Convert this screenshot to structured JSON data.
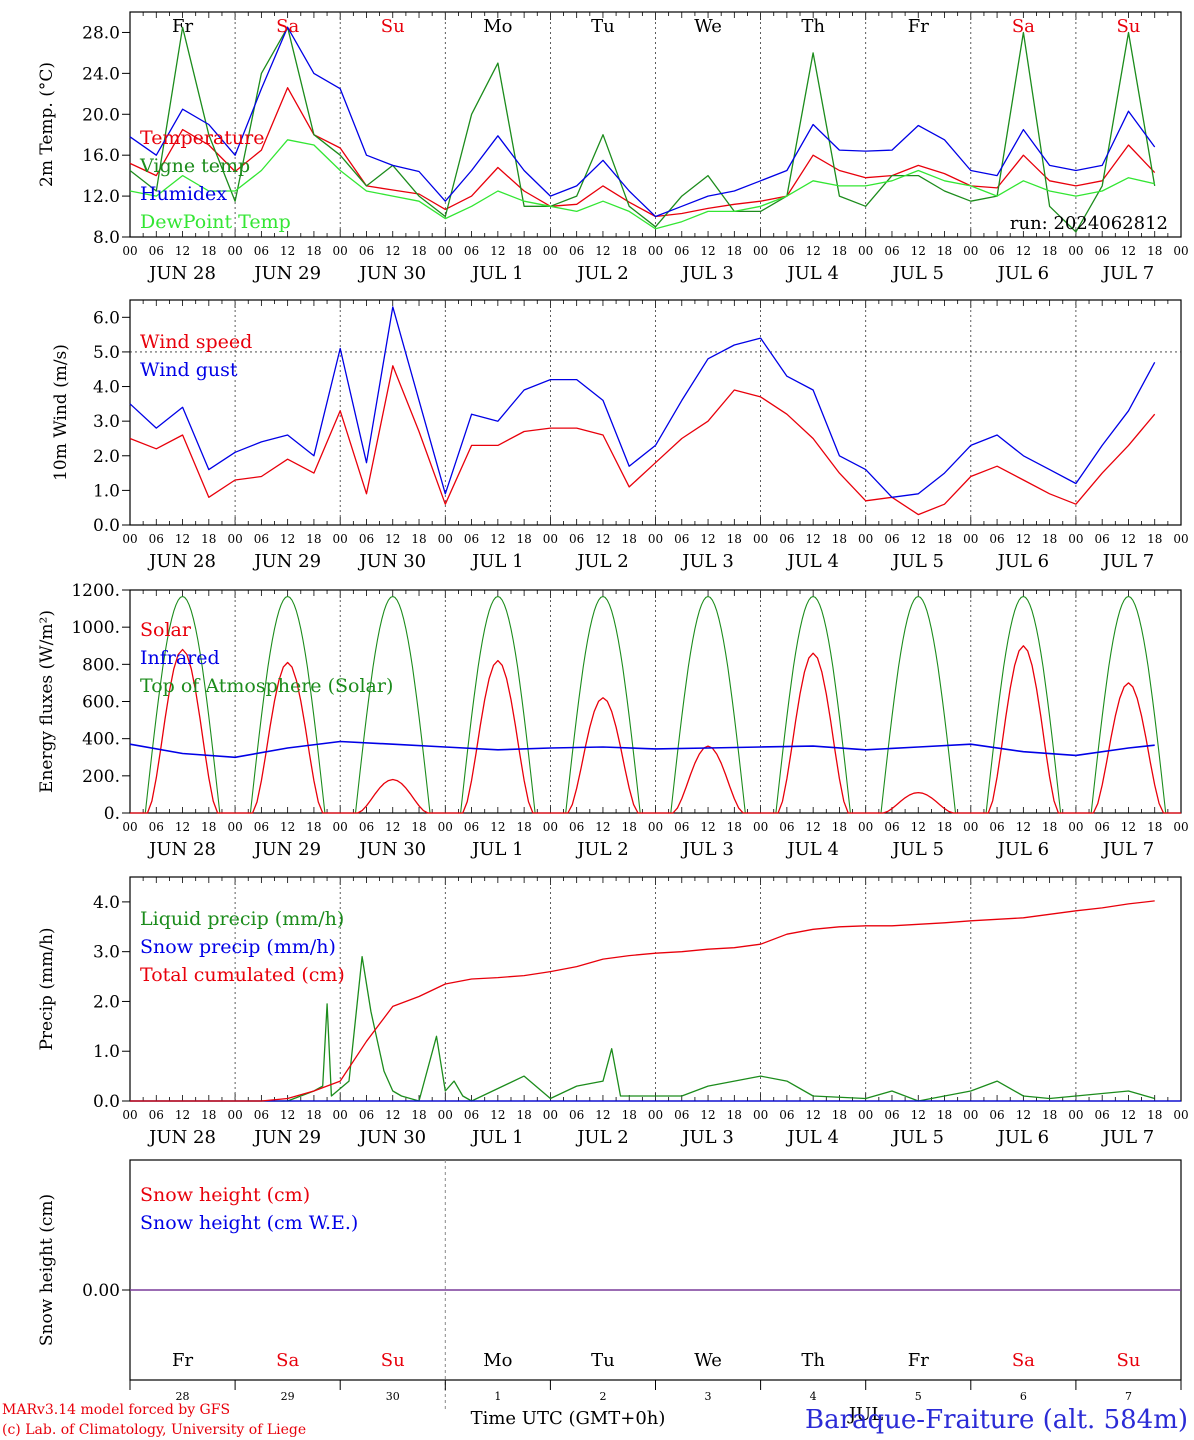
{
  "footer": {
    "credit_line1": "MARv3.14 model forced by GFS",
    "credit_line2": "(c) Lab. of Climatology, University of Liege",
    "xlabel": "Time UTC (GMT+0h)",
    "station": "Baraque-Fraiture (alt. 584m)",
    "month": "JUL"
  },
  "days": [
    "Fr",
    "Sa",
    "Su",
    "Mo",
    "Tu",
    "We",
    "Th",
    "Fr",
    "Sa",
    "Su"
  ],
  "weekend_color": "#e8000b",
  "weekday_color": "#000000",
  "date_labels": [
    "JUN 28",
    "JUN 29",
    "JUN 30",
    "JUL  1",
    "JUL  2",
    "JUL  3",
    "JUL  4",
    "JUL  5",
    "JUL  6",
    "JUL  7"
  ],
  "day_numbers": [
    "28",
    "29",
    "30",
    "1",
    "2",
    "3",
    "4",
    "5",
    "6",
    "7"
  ],
  "hour_ticks": [
    "00",
    "06",
    "12",
    "18"
  ],
  "chart_data": [
    {
      "type": "line",
      "ylabel": "2m Temp. (°C)",
      "ylim": [
        8,
        30
      ],
      "yticks": [
        "8.0",
        "12.0",
        "16.0",
        "20.0",
        "24.0",
        "28.0"
      ],
      "x_unit": "hours since 2024-06-28 00 UTC",
      "annotation": "run: 2024062812",
      "series": [
        {
          "name": "Temperature",
          "color": "#e8000b",
          "x": [
            0,
            6,
            12,
            18,
            24,
            30,
            36,
            42,
            48,
            54,
            60,
            66,
            72,
            78,
            84,
            90,
            96,
            102,
            108,
            114,
            120,
            126,
            132,
            138,
            144,
            150,
            156,
            162,
            168,
            174,
            180,
            186,
            192,
            198,
            204,
            210,
            216,
            222,
            228,
            234
          ],
          "y": [
            15.2,
            14.0,
            18.5,
            17.0,
            14.4,
            16.5,
            22.6,
            18.0,
            16.7,
            13.0,
            12.6,
            12.2,
            10.7,
            12.0,
            14.8,
            12.5,
            11.0,
            11.2,
            13.0,
            11.4,
            10.0,
            10.3,
            10.8,
            11.2,
            11.5,
            12.0,
            16.0,
            14.5,
            13.8,
            14.0,
            15.0,
            14.2,
            13.0,
            12.8,
            16.0,
            13.5,
            13.0,
            13.5,
            17.0,
            14.3
          ]
        },
        {
          "name": "Vigne temp",
          "color": "#1c8c1c",
          "x": [
            0,
            6,
            12,
            18,
            24,
            30,
            36,
            42,
            48,
            54,
            60,
            66,
            72,
            78,
            84,
            90,
            96,
            102,
            108,
            114,
            120,
            126,
            132,
            138,
            144,
            150,
            156,
            162,
            168,
            174,
            180,
            186,
            192,
            198,
            204,
            210,
            216,
            222,
            228,
            234
          ],
          "y": [
            14.5,
            12.5,
            28.5,
            18.0,
            11.5,
            24.0,
            28.5,
            18.0,
            16.0,
            13.0,
            15.0,
            12.0,
            10.0,
            20.0,
            25.0,
            11.0,
            11.0,
            12.0,
            18.0,
            11.0,
            9.0,
            12.0,
            14.0,
            10.5,
            10.5,
            12.0,
            26.0,
            12.0,
            11.0,
            14.0,
            14.0,
            12.5,
            11.5,
            12.0,
            28.0,
            11.0,
            8.5,
            13.0,
            28.0,
            13.0
          ]
        },
        {
          "name": "Humidex",
          "color": "#0000e6",
          "x": [
            0,
            6,
            12,
            18,
            24,
            30,
            36,
            42,
            48,
            54,
            60,
            66,
            72,
            78,
            84,
            90,
            96,
            102,
            108,
            114,
            120,
            126,
            132,
            138,
            144,
            150,
            156,
            162,
            168,
            174,
            180,
            186,
            192,
            198,
            204,
            210,
            216,
            222,
            228,
            234
          ],
          "y": [
            17.8,
            16.0,
            20.5,
            19.0,
            16.0,
            22.5,
            28.5,
            24.0,
            22.5,
            16.0,
            15.0,
            14.4,
            11.5,
            14.5,
            17.9,
            14.5,
            12.0,
            13.0,
            15.5,
            12.5,
            10.0,
            11.0,
            12.0,
            12.5,
            13.5,
            14.5,
            19.0,
            16.5,
            16.4,
            16.5,
            18.9,
            17.5,
            14.5,
            14.0,
            18.5,
            15.0,
            14.5,
            15.0,
            20.3,
            16.8
          ]
        },
        {
          "name": "DewPoint Temp",
          "color": "#33e633",
          "x": [
            0,
            6,
            12,
            18,
            24,
            30,
            36,
            42,
            48,
            54,
            60,
            66,
            72,
            78,
            84,
            90,
            96,
            102,
            108,
            114,
            120,
            126,
            132,
            138,
            144,
            150,
            156,
            162,
            168,
            174,
            180,
            186,
            192,
            198,
            204,
            210,
            216,
            222,
            228,
            234
          ],
          "y": [
            12.5,
            12.0,
            14.0,
            12.5,
            12.5,
            14.5,
            17.5,
            17.0,
            14.5,
            12.5,
            12.0,
            11.5,
            9.8,
            11.0,
            12.5,
            11.5,
            11.0,
            10.5,
            11.5,
            10.5,
            8.8,
            9.5,
            10.5,
            10.5,
            11.0,
            12.0,
            13.5,
            13.0,
            13.0,
            13.5,
            14.5,
            13.5,
            13.0,
            12.0,
            13.5,
            12.5,
            12.0,
            12.5,
            13.8,
            13.2
          ]
        }
      ]
    },
    {
      "type": "line",
      "ylabel": "10m Wind (m/s)",
      "ylim": [
        0,
        6.5
      ],
      "yticks": [
        "0.0",
        "1.0",
        "2.0",
        "3.0",
        "4.0",
        "5.0",
        "6.0"
      ],
      "reference_line": 5.0,
      "series": [
        {
          "name": "Wind speed",
          "color": "#e8000b",
          "x": [
            0,
            6,
            12,
            18,
            24,
            30,
            36,
            42,
            48,
            54,
            60,
            66,
            72,
            78,
            84,
            90,
            96,
            102,
            108,
            114,
            120,
            126,
            132,
            138,
            144,
            150,
            156,
            162,
            168,
            174,
            180,
            186,
            192,
            198,
            204,
            210,
            216,
            222,
            228,
            234
          ],
          "y": [
            2.5,
            2.2,
            2.6,
            0.8,
            1.3,
            1.4,
            1.9,
            1.5,
            3.3,
            0.9,
            4.6,
            2.7,
            0.6,
            2.3,
            2.3,
            2.7,
            2.8,
            2.8,
            2.6,
            1.1,
            1.8,
            2.5,
            3.0,
            3.9,
            3.7,
            3.2,
            2.5,
            1.5,
            0.7,
            0.8,
            0.3,
            0.6,
            1.4,
            1.7,
            1.3,
            0.9,
            0.6,
            1.5,
            2.3,
            3.2
          ]
        },
        {
          "name": "Wind gust",
          "color": "#0000e6",
          "x": [
            0,
            6,
            12,
            18,
            24,
            30,
            36,
            42,
            48,
            54,
            60,
            66,
            72,
            78,
            84,
            90,
            96,
            102,
            108,
            114,
            120,
            126,
            132,
            138,
            144,
            150,
            156,
            162,
            168,
            174,
            180,
            186,
            192,
            198,
            204,
            210,
            216,
            222,
            228,
            234
          ],
          "y": [
            3.5,
            2.8,
            3.4,
            1.6,
            2.1,
            2.4,
            2.6,
            2.0,
            5.1,
            1.8,
            6.3,
            3.6,
            0.9,
            3.2,
            3.0,
            3.9,
            4.2,
            4.2,
            3.6,
            1.7,
            2.3,
            3.6,
            4.8,
            5.2,
            5.4,
            4.3,
            3.9,
            2.0,
            1.6,
            0.8,
            0.9,
            1.5,
            2.3,
            2.6,
            2.0,
            1.6,
            1.2,
            2.3,
            3.3,
            4.7
          ]
        }
      ]
    },
    {
      "type": "line",
      "ylabel": "Energy fluxes (W/m²)",
      "ylim": [
        0,
        1200
      ],
      "yticks": [
        "0.",
        "200.",
        "400.",
        "600.",
        "800.",
        "1000.",
        "1200."
      ],
      "series": [
        {
          "name": "Solar",
          "color": "#e8000b",
          "peaks": [
            880,
            810,
            180,
            820,
            620,
            360,
            860,
            110,
            900,
            700
          ],
          "peak_hour": 12
        },
        {
          "name": "Infrared",
          "color": "#0000e6",
          "x": [
            0,
            12,
            24,
            36,
            48,
            60,
            72,
            84,
            96,
            108,
            120,
            132,
            144,
            156,
            168,
            180,
            192,
            204,
            216,
            228,
            234
          ],
          "y": [
            370,
            320,
            300,
            350,
            385,
            370,
            355,
            340,
            350,
            355,
            345,
            350,
            355,
            360,
            340,
            355,
            370,
            330,
            310,
            350,
            365
          ]
        },
        {
          "name": "Top of Atmosphere (Solar)",
          "color": "#1c8c1c",
          "peak": 1165,
          "sunrise_hour": 3.5,
          "sunset_hour": 20.5
        }
      ]
    },
    {
      "type": "line",
      "ylabel": "Precip (mm/h)",
      "ylim": [
        0,
        4.5
      ],
      "yticks": [
        "0.0",
        "1.0",
        "2.0",
        "3.0",
        "4.0"
      ],
      "series": [
        {
          "name": "Liquid precip (mm/h)",
          "color": "#1c8c1c",
          "x": [
            0,
            36,
            42,
            44,
            45,
            46,
            50,
            53,
            55,
            58,
            60,
            62,
            66,
            70,
            72,
            74,
            76,
            78,
            90,
            96,
            102,
            108,
            110,
            112,
            120,
            126,
            132,
            144,
            150,
            156,
            168,
            174,
            180,
            186,
            192,
            198,
            204,
            210,
            216,
            222,
            228,
            234
          ],
          "y": [
            0,
            0,
            0.2,
            0.3,
            1.95,
            0.1,
            0.4,
            2.9,
            1.8,
            0.6,
            0.2,
            0.1,
            0,
            1.3,
            0.2,
            0.4,
            0.1,
            0,
            0.5,
            0.05,
            0.3,
            0.4,
            1.05,
            0.1,
            0.1,
            0.1,
            0.3,
            0.5,
            0.4,
            0.1,
            0.05,
            0.2,
            0,
            0.1,
            0.2,
            0.4,
            0.1,
            0.05,
            0.1,
            0.15,
            0.2,
            0.05
          ]
        },
        {
          "name": "Snow precip (mm/h)",
          "color": "#0000e6",
          "x": [
            0,
            240
          ],
          "y": [
            0,
            0
          ]
        },
        {
          "name": "Total cumulated (cm)",
          "color": "#e8000b",
          "x": [
            0,
            30,
            36,
            42,
            48,
            54,
            60,
            66,
            72,
            78,
            84,
            90,
            96,
            102,
            108,
            114,
            120,
            126,
            132,
            138,
            144,
            150,
            156,
            162,
            168,
            174,
            180,
            186,
            192,
            198,
            204,
            210,
            216,
            222,
            228,
            234
          ],
          "y": [
            0,
            0,
            0.05,
            0.2,
            0.4,
            1.2,
            1.9,
            2.1,
            2.35,
            2.45,
            2.48,
            2.52,
            2.6,
            2.7,
            2.85,
            2.92,
            2.97,
            3.0,
            3.05,
            3.08,
            3.15,
            3.35,
            3.45,
            3.5,
            3.52,
            3.52,
            3.55,
            3.58,
            3.62,
            3.65,
            3.68,
            3.75,
            3.82,
            3.88,
            3.96,
            4.02
          ]
        }
      ]
    },
    {
      "type": "line",
      "ylabel": "Snow height (cm)",
      "yticks": [
        "0.00"
      ],
      "series": [
        {
          "name": "Snow height (cm)",
          "color": "#e8000b",
          "x": [
            0,
            240
          ],
          "y": [
            0,
            0
          ]
        },
        {
          "name": "Snow height (cm W.E.)",
          "color": "#0000e6",
          "x": [
            0,
            240
          ],
          "y": [
            0,
            0
          ]
        }
      ]
    }
  ]
}
